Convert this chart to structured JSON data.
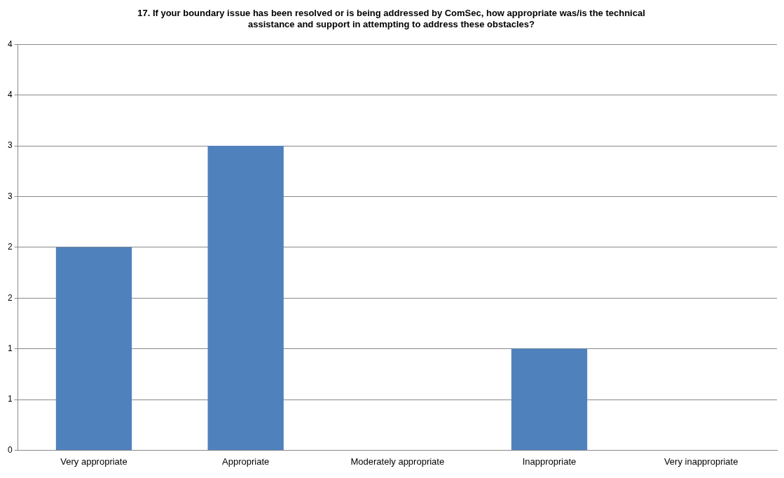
{
  "chart_data": {
    "type": "bar",
    "title": "17. If your boundary issue has been resolved or is being addressed by ComSec, how appropriate was/is the technical assistance and support in attempting to address these obstacles?",
    "categories": [
      "Very appropriate",
      "Appropriate",
      "Moderately appropriate",
      "Inappropriate",
      "Very inappropriate"
    ],
    "values": [
      2,
      3,
      0,
      1,
      0
    ],
    "color": "#4f81bd",
    "ylim": [
      0,
      4
    ],
    "yticks": [
      0,
      {
        "value": 0.5,
        "label": "1"
      },
      1,
      {
        "value": 1.5,
        "label": "2"
      },
      2,
      {
        "value": 2.5,
        "label": "3"
      },
      3,
      {
        "value": 3.5,
        "label": "4"
      },
      4
    ],
    "grid": "y"
  }
}
